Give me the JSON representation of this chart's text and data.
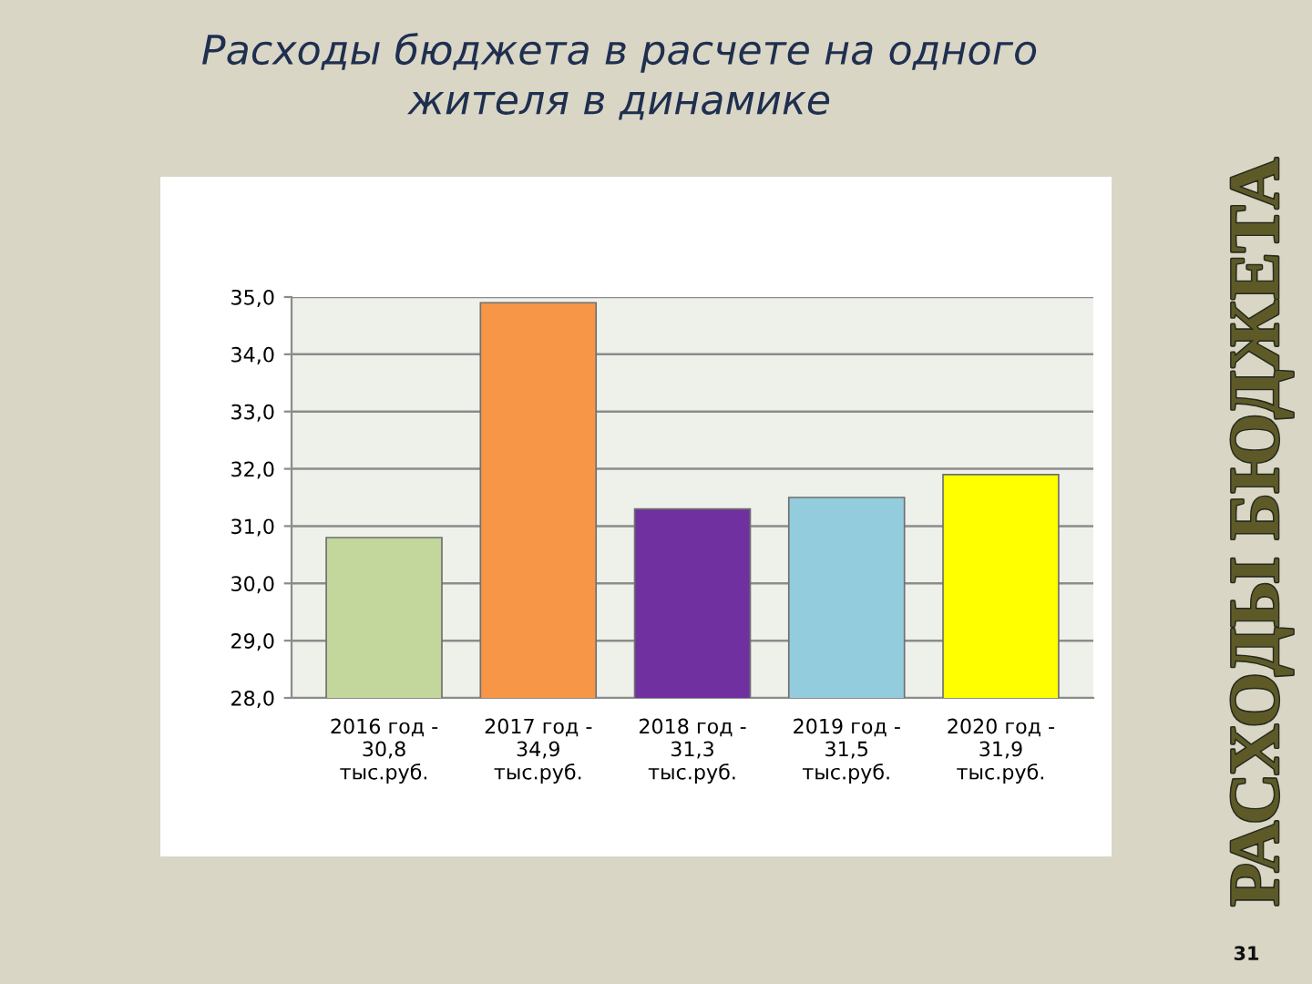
{
  "chart_data": {
    "type": "bar",
    "title": "Расходы бюджета в расчете на одного\nжителя в динамике",
    "categories": [
      "2016 год -\n30,8\nтыс.руб.",
      "2017 год -\n34,9\nтыс.руб.",
      "2018 год -\n31,3\nтыс.руб.",
      "2019 год -\n31,5\nтыс.руб.",
      "2020 год -\n31,9\nтыс.руб."
    ],
    "values": [
      30.8,
      34.9,
      31.3,
      31.5,
      31.9
    ],
    "colors": [
      "#c3d69b",
      "#f79646",
      "#7030a0",
      "#93cddd",
      "#ffff00"
    ],
    "ylim": [
      28,
      35
    ],
    "yticks": [
      {
        "value": 28,
        "label": "28,0"
      },
      {
        "value": 29,
        "label": "29,0"
      },
      {
        "value": 30,
        "label": "30,0"
      },
      {
        "value": 31,
        "label": "31,0"
      },
      {
        "value": 32,
        "label": "32,0"
      },
      {
        "value": 33,
        "label": "33,0"
      },
      {
        "value": 34,
        "label": "34,0"
      },
      {
        "value": 35,
        "label": "35,0"
      }
    ],
    "grid": "y",
    "annotations": [
      "РАСХОДЫ БЮДЖЕТА",
      "31"
    ]
  }
}
